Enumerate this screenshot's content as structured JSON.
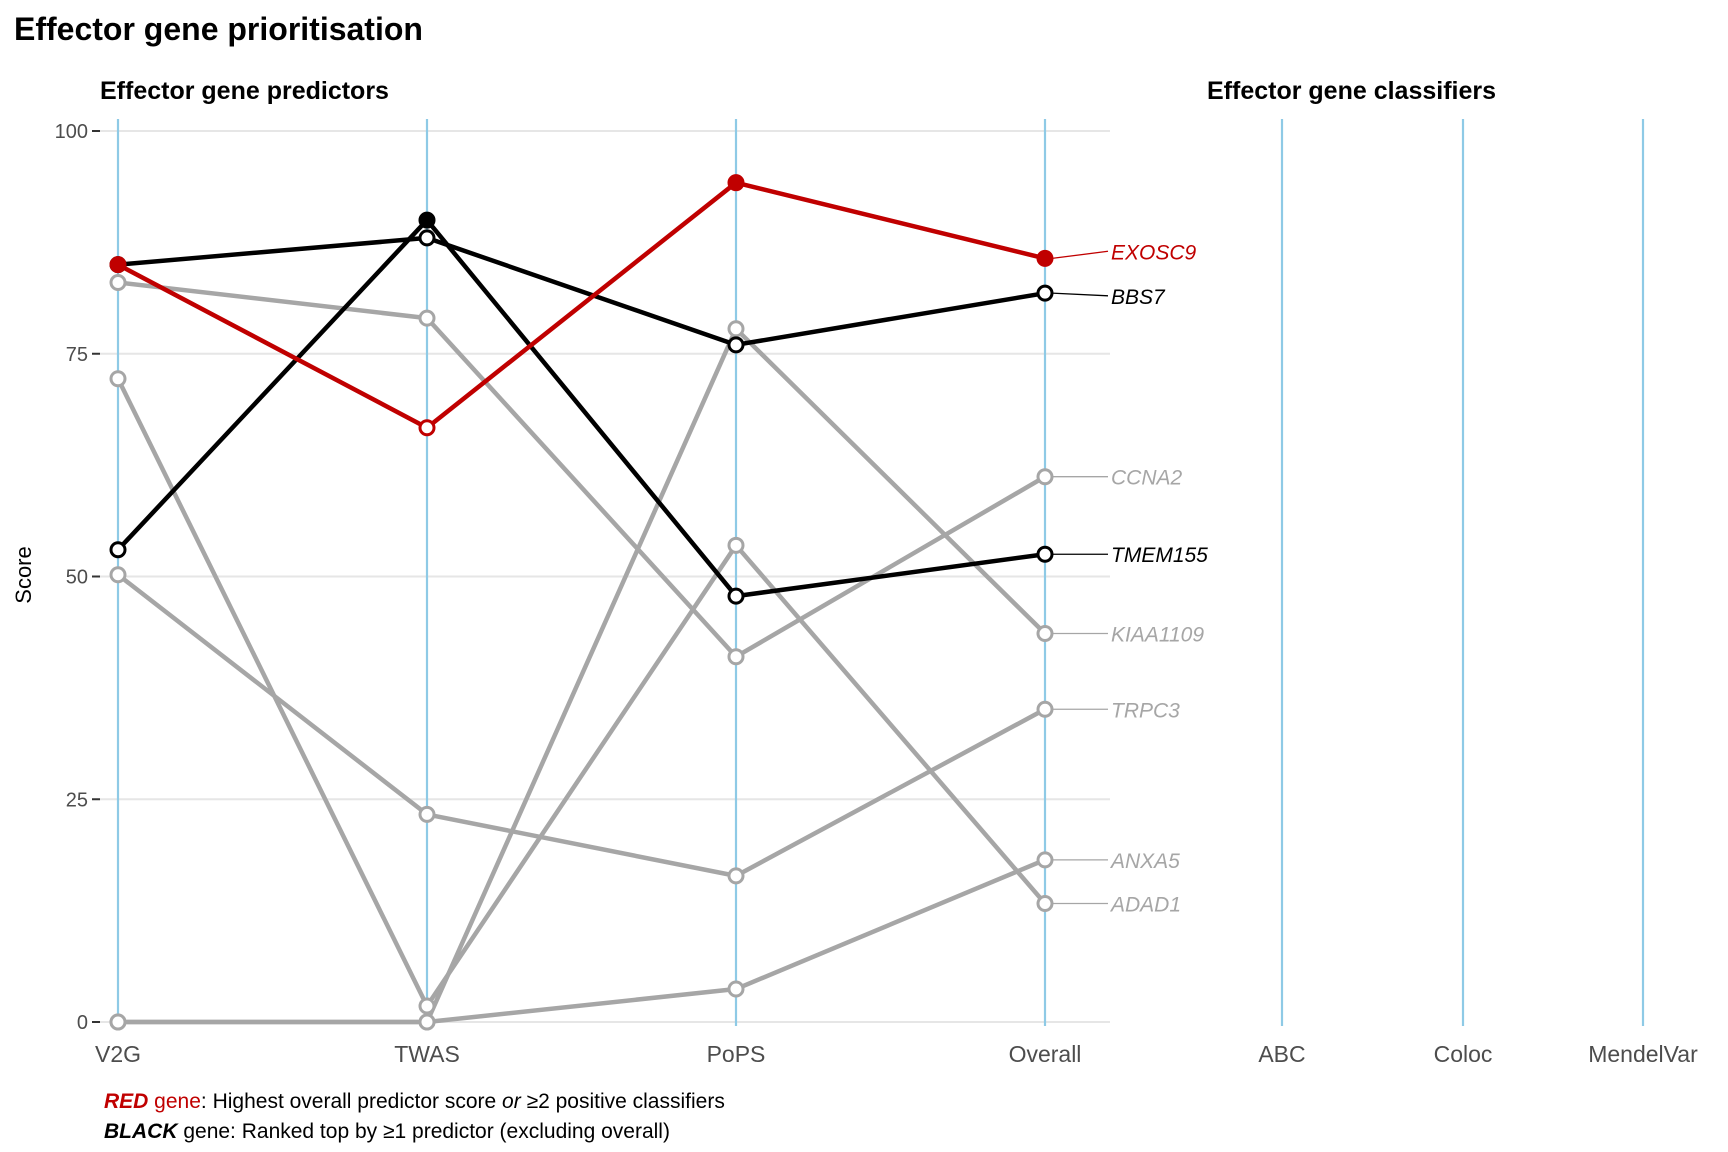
{
  "title": "Effector gene prioritisation",
  "predictors_heading": "Effector gene predictors",
  "classifiers_heading": "Effector gene classifiers",
  "chart_data": {
    "type": "line",
    "ylabel": "Score",
    "ylim": [
      0,
      100
    ],
    "y_ticks": [
      "0",
      "25",
      "50",
      "75",
      "100"
    ],
    "y_tick_values": [
      0,
      25,
      50,
      75,
      100
    ],
    "grid": true,
    "predictor_axes": [
      "V2G",
      "TWAS",
      "PoPS",
      "Overall"
    ],
    "classifier_axes": [
      "ABC",
      "Coloc",
      "MendelVar"
    ],
    "series": [
      {
        "name": "EXOSC9",
        "color": "#c00000",
        "values": [
          85,
          66.7,
          94.2,
          85.7
        ],
        "filled": [
          true,
          false,
          true,
          true
        ]
      },
      {
        "name": "BBS7",
        "color": "#000000",
        "values": [
          85,
          88,
          76,
          81.8
        ],
        "filled": [
          true,
          false,
          false,
          false
        ]
      },
      {
        "name": "TMEM155",
        "color": "#000000",
        "values": [
          53,
          90,
          47.8,
          52.5
        ],
        "filled": [
          false,
          true,
          false,
          false
        ]
      },
      {
        "name": "CCNA2",
        "color": "#a6a6a6",
        "values": [
          83,
          79,
          41,
          61.2
        ],
        "filled": [
          false,
          false,
          false,
          false
        ]
      },
      {
        "name": "KIAA1109",
        "color": "#a6a6a6",
        "values": [
          0,
          0,
          77.8,
          43.6
        ],
        "filled": [
          false,
          false,
          false,
          false
        ]
      },
      {
        "name": "TRPC3",
        "color": "#a6a6a6",
        "values": [
          50.2,
          23.3,
          16.4,
          35.1
        ],
        "filled": [
          false,
          false,
          false,
          false
        ]
      },
      {
        "name": "ANXA5",
        "color": "#a6a6a6",
        "values": [
          0,
          0,
          3.7,
          18.2
        ],
        "filled": [
          false,
          false,
          false,
          false
        ]
      },
      {
        "name": "ADAD1",
        "color": "#a6a6a6",
        "values": [
          72.2,
          1.8,
          53.5,
          13.3
        ],
        "filled": [
          false,
          false,
          false,
          false
        ]
      }
    ],
    "label_positions": [
      86.5,
      81.5,
      52.5,
      61.2,
      43.6,
      35.1,
      18.2,
      13.3
    ]
  },
  "footnote": {
    "line1": {
      "emph": "RED",
      "gene_word": " gene",
      "pre": ": Highest overall predictor score ",
      "italic": "or",
      "post": " ≥2 positive classifiers"
    },
    "line2": {
      "emph": "BLACK",
      "post": " gene: Ranked top by ≥1 predictor (excluding overall)"
    }
  },
  "colors": {
    "red": "#c00000",
    "black": "#000000",
    "grey": "#a6a6a6",
    "axis": "#8ecae6",
    "grid": "#e6e6e6"
  }
}
